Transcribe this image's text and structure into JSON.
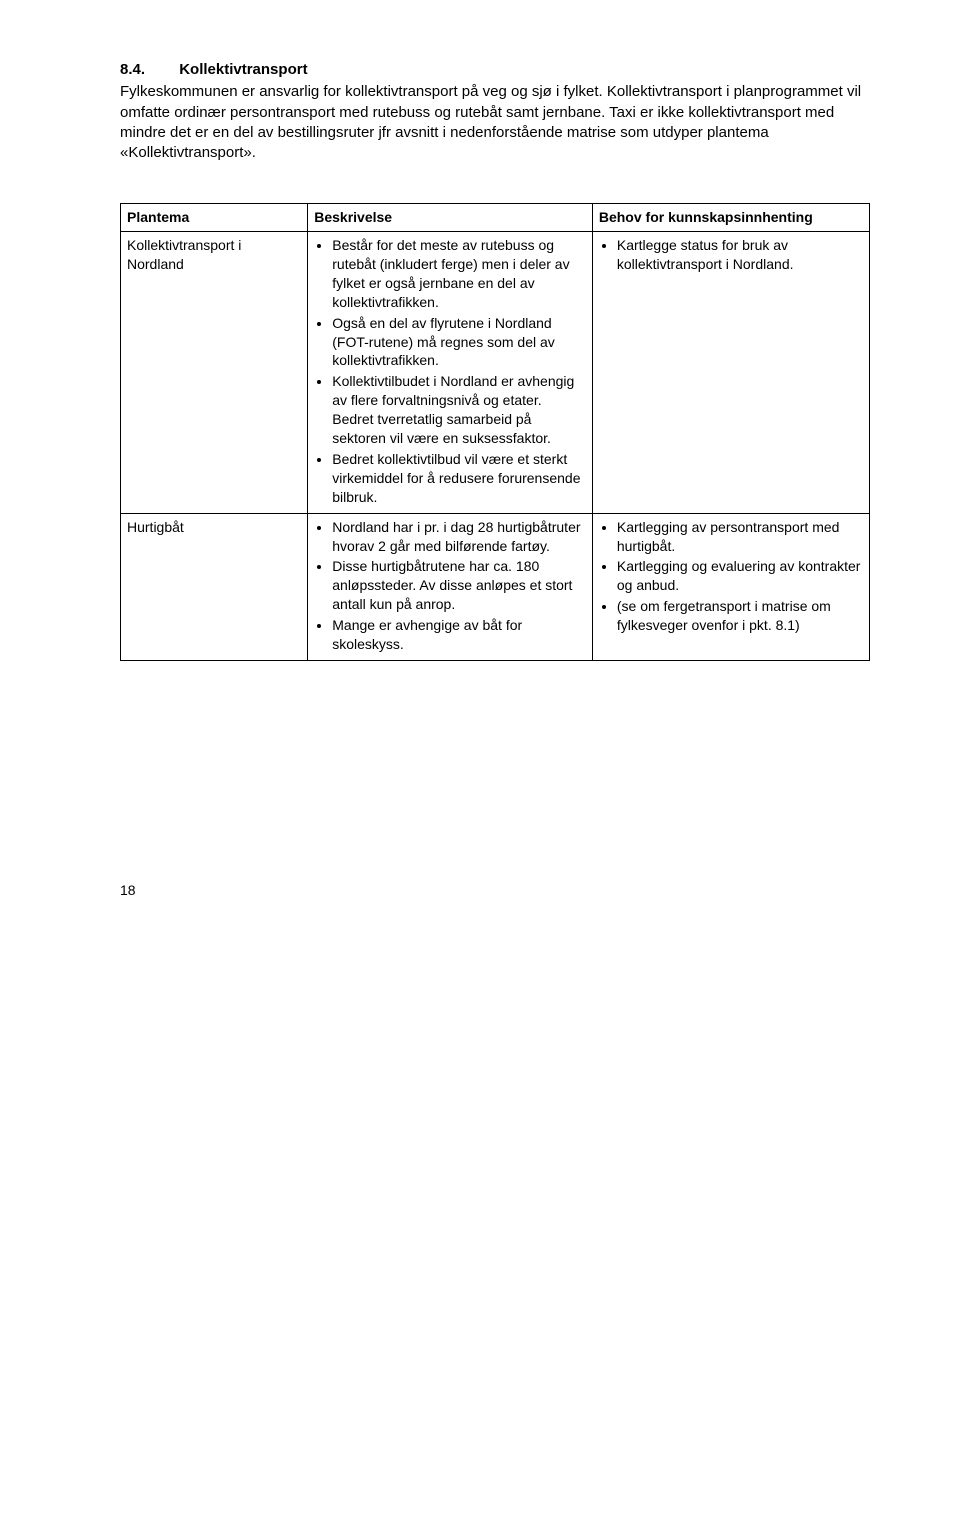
{
  "heading": {
    "number": "8.4.",
    "title": "Kollektivtransport"
  },
  "intro": "Fylkeskommunen er ansvarlig for kollektivtransport på veg og sjø i fylket. Kollektivtransport i planprogrammet vil omfatte ordinær persontransport med rutebuss og rutebåt samt jernbane. Taxi er ikke kollektivtransport med mindre det er en del av bestillingsruter jfr avsnitt i nedenforstående matrise som utdyper plantema «Kollektivtransport».",
  "table": {
    "headers": {
      "col1": "Plantema",
      "col2": "Beskrivelse",
      "col3": "Behov for kunnskapsinnhenting"
    },
    "rows": [
      {
        "plantema": "Kollektivtransport i Nordland",
        "beskrivelse": [
          "Består for det meste av rutebuss og rutebåt (inkludert ferge) men i deler av fylket er også jernbane en del av kollektivtrafikken.",
          "Også en del av flyrutene i Nordland (FOT-rutene) må regnes som del av kollektivtrafikken.",
          "Kollektivtilbudet i Nordland er avhengig av flere forvaltningsnivå og etater. Bedret tverretatlig samarbeid på sektoren vil være en suksessfaktor.",
          "Bedret kollektivtilbud vil være et sterkt virkemiddel for å redusere forurensende bilbruk."
        ],
        "behov": [
          "Kartlegge status for bruk av kollektivtransport i Nordland."
        ]
      },
      {
        "plantema": "Hurtigbåt",
        "beskrivelse": [
          "Nordland har i pr. i dag 28 hurtigbåtruter hvorav 2 går med bilførende fartøy.",
          "Disse hurtigbåtrutene har ca. 180 anløpssteder. Av disse anløpes et stort antall kun på anrop.",
          "Mange er avhengige av båt for skoleskyss."
        ],
        "behov": [
          "Kartlegging av persontransport med hurtigbåt.",
          "Kartlegging og evaluering av kontrakter og anbud.",
          "(se om fergetransport i matrise om fylkesveger ovenfor i pkt. 8.1)"
        ]
      }
    ]
  },
  "pageNumber": "18"
}
